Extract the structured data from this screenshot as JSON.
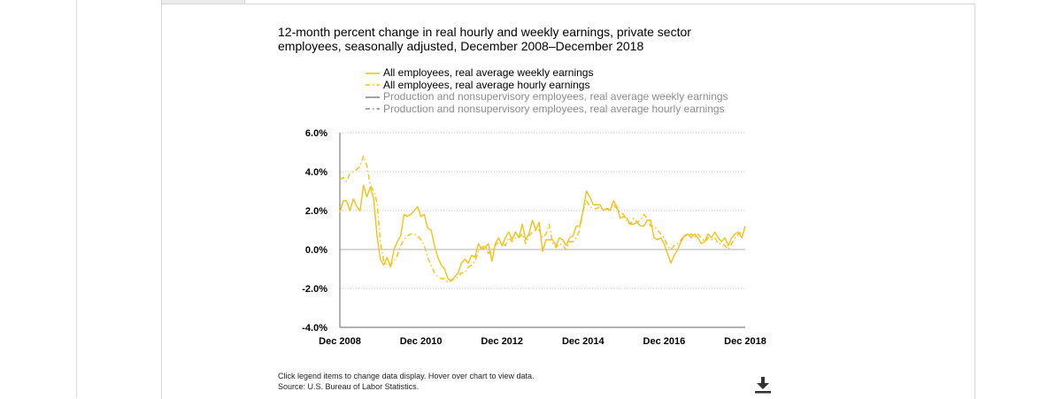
{
  "title_line1": "12-month percent change in real hourly and weekly earnings, private sector",
  "title_line2": "employees, seasonally adjusted, December 2008–December 2018",
  "footnote_line1": "Click legend items to change data display. Hover over chart to view data.",
  "footnote_line2": "Source: U.S. Bureau of Labor Statistics.",
  "download_icon": "download-icon",
  "colors": {
    "accent": "#f5c116",
    "gray": "#8c8c8c",
    "grid": "#c8c8c8",
    "zero": "#b3b3b3"
  },
  "chart_data": {
    "type": "line",
    "title": "12-month percent change in real hourly and weekly earnings, private sector employees, seasonally adjusted, December 2008–December 2018",
    "xlabel": "",
    "ylabel": "",
    "x_ticks": [
      "Dec 2008",
      "Dec 2010",
      "Dec 2012",
      "Dec 2014",
      "Dec 2016",
      "Dec 2018"
    ],
    "y_ticks": [
      "-4.0%",
      "-2.0%",
      "0.0%",
      "2.0%",
      "4.0%",
      "6.0%"
    ],
    "ylim": [
      -4,
      6
    ],
    "grid": "horizontal dotted",
    "legend_position": "top",
    "x_range": [
      "Dec 2008",
      "Dec 2018"
    ],
    "series": [
      {
        "name": "All employees, real average weekly earnings",
        "visible": true,
        "style": "solid",
        "color": "#f5c116",
        "points": [
          [
            "Dec 2008",
            1.9
          ],
          [
            "Jan 2009",
            2.5
          ],
          [
            "Feb 2009",
            2.5
          ],
          [
            "Mar 2009",
            2.0
          ],
          [
            "Apr 2009",
            2.6
          ],
          [
            "May 2009",
            2.2
          ],
          [
            "Jun 2009",
            2.0
          ],
          [
            "Jul 2009",
            3.3
          ],
          [
            "Aug 2009",
            2.7
          ],
          [
            "Sep 2009",
            3.2
          ],
          [
            "Oct 2009",
            2.6
          ],
          [
            "Nov 2009",
            0.7
          ],
          [
            "Dec 2009",
            -0.5
          ],
          [
            "Jan 2010",
            -0.8
          ],
          [
            "Feb 2010",
            -0.4
          ],
          [
            "Mar 2010",
            -0.9
          ],
          [
            "Apr 2010",
            0.0
          ],
          [
            "May 2010",
            0.4
          ],
          [
            "Jun 2010",
            0.7
          ],
          [
            "Jul 2010",
            1.8
          ],
          [
            "Aug 2010",
            1.7
          ],
          [
            "Sep 2010",
            1.8
          ],
          [
            "Oct 2010",
            2.0
          ],
          [
            "Nov 2010",
            2.2
          ],
          [
            "Dec 2010",
            1.7
          ],
          [
            "Jan 2011",
            1.8
          ],
          [
            "Feb 2011",
            1.1
          ],
          [
            "Mar 2011",
            1.0
          ],
          [
            "Apr 2011",
            0.2
          ],
          [
            "May 2011",
            -0.4
          ],
          [
            "Jun 2011",
            -0.8
          ],
          [
            "Jul 2011",
            -1.0
          ],
          [
            "Aug 2011",
            -1.5
          ],
          [
            "Sep 2011",
            -1.6
          ],
          [
            "Oct 2011",
            -1.4
          ],
          [
            "Nov 2011",
            -1.2
          ],
          [
            "Dec 2011",
            -0.7
          ],
          [
            "Jan 2012",
            -0.5
          ],
          [
            "Feb 2012",
            -0.7
          ],
          [
            "Mar 2012",
            -0.3
          ],
          [
            "Apr 2012",
            -0.4
          ],
          [
            "May 2012",
            0.3
          ],
          [
            "Jun 2012",
            0.0
          ],
          [
            "Jul 2012",
            0.1
          ],
          [
            "Aug 2012",
            0.3
          ],
          [
            "Sep 2012",
            -0.6
          ],
          [
            "Oct 2012",
            0.3
          ],
          [
            "Nov 2012",
            0.6
          ],
          [
            "Dec 2012",
            0.2
          ],
          [
            "Jan 2013",
            0.6
          ],
          [
            "Feb 2013",
            0.9
          ],
          [
            "Mar 2013",
            0.5
          ],
          [
            "Apr 2013",
            0.9
          ],
          [
            "May 2013",
            0.6
          ],
          [
            "Jun 2013",
            1.3
          ],
          [
            "Jul 2013",
            0.5
          ],
          [
            "Aug 2013",
            0.8
          ],
          [
            "Sep 2013",
            1.5
          ],
          [
            "Oct 2013",
            1.0
          ],
          [
            "Nov 2013",
            1.4
          ],
          [
            "Dec 2013",
            -0.1
          ],
          [
            "Jan 2014",
            0.5
          ],
          [
            "Feb 2014",
            0.5
          ],
          [
            "Mar 2014",
            0.5
          ],
          [
            "Apr 2014",
            0.2
          ],
          [
            "May 2014",
            0.6
          ],
          [
            "Jun 2014",
            0.5
          ],
          [
            "Jul 2014",
            0.2
          ],
          [
            "Aug 2014",
            0.6
          ],
          [
            "Sep 2014",
            0.7
          ],
          [
            "Oct 2014",
            1.2
          ],
          [
            "Nov 2014",
            1.2
          ],
          [
            "Dec 2014",
            2.0
          ],
          [
            "Jan 2015",
            3.0
          ],
          [
            "Feb 2015",
            2.7
          ],
          [
            "Mar 2015",
            2.3
          ],
          [
            "Apr 2015",
            2.3
          ],
          [
            "May 2015",
            2.3
          ],
          [
            "Jun 2015",
            2.0
          ],
          [
            "Jul 2015",
            2.1
          ],
          [
            "Aug 2015",
            2.0
          ],
          [
            "Sep 2015",
            2.5
          ],
          [
            "Oct 2015",
            2.2
          ],
          [
            "Nov 2015",
            1.6
          ],
          [
            "Dec 2015",
            1.7
          ],
          [
            "Jan 2016",
            1.6
          ],
          [
            "Feb 2016",
            1.3
          ],
          [
            "Mar 2016",
            1.3
          ],
          [
            "Apr 2016",
            1.4
          ],
          [
            "May 2016",
            1.2
          ],
          [
            "Jun 2016",
            1.2
          ],
          [
            "Jul 2016",
            1.5
          ],
          [
            "Aug 2016",
            1.5
          ],
          [
            "Sep 2016",
            0.6
          ],
          [
            "Oct 2016",
            0.5
          ],
          [
            "Nov 2016",
            0.6
          ],
          [
            "Dec 2016",
            0.3
          ],
          [
            "Jan 2017",
            -0.2
          ],
          [
            "Feb 2017",
            -0.7
          ],
          [
            "Mar 2017",
            -0.3
          ],
          [
            "Apr 2017",
            0.0
          ],
          [
            "May 2017",
            0.4
          ],
          [
            "Jun 2017",
            0.7
          ],
          [
            "Jul 2017",
            0.8
          ],
          [
            "Aug 2017",
            0.6
          ],
          [
            "Sep 2017",
            0.8
          ],
          [
            "Oct 2017",
            0.6
          ],
          [
            "Nov 2017",
            0.3
          ],
          [
            "Dec 2017",
            0.4
          ],
          [
            "Jan 2018",
            0.8
          ],
          [
            "Feb 2018",
            0.6
          ],
          [
            "Mar 2018",
            0.9
          ],
          [
            "Apr 2018",
            0.6
          ],
          [
            "May 2018",
            0.4
          ],
          [
            "Jun 2018",
            0.6
          ],
          [
            "Jul 2018",
            0.2
          ],
          [
            "Aug 2018",
            0.6
          ],
          [
            "Sep 2018",
            0.8
          ],
          [
            "Oct 2018",
            0.9
          ],
          [
            "Nov 2018",
            0.6
          ],
          [
            "Dec 2018",
            1.2
          ]
        ]
      },
      {
        "name": "All employees, real average hourly earnings",
        "visible": true,
        "style": "dash-dot",
        "color": "#f5c116",
        "points": [
          [
            "Dec 2008",
            3.6
          ],
          [
            "Jan 2009",
            3.7
          ],
          [
            "Feb 2009",
            3.5
          ],
          [
            "Mar 2009",
            3.9
          ],
          [
            "Apr 2009",
            4.0
          ],
          [
            "May 2009",
            4.1
          ],
          [
            "Jun 2009",
            4.3
          ],
          [
            "Jul 2009",
            4.8
          ],
          [
            "Aug 2009",
            4.3
          ],
          [
            "Sep 2009",
            3.3
          ],
          [
            "Oct 2009",
            3.0
          ],
          [
            "Nov 2009",
            2.4
          ],
          [
            "Dec 2009",
            0.4
          ],
          [
            "Jan 2010",
            -0.6
          ],
          [
            "Feb 2010",
            -0.8
          ],
          [
            "Mar 2010",
            -0.8
          ],
          [
            "Apr 2010",
            -0.6
          ],
          [
            "May 2010",
            -0.3
          ],
          [
            "Jun 2010",
            0.2
          ],
          [
            "Jul 2010",
            0.5
          ],
          [
            "Aug 2010",
            0.7
          ],
          [
            "Sep 2010",
            0.8
          ],
          [
            "Oct 2010",
            0.8
          ],
          [
            "Nov 2010",
            0.7
          ],
          [
            "Dec 2010",
            0.5
          ],
          [
            "Jan 2011",
            0.2
          ],
          [
            "Feb 2011",
            -0.4
          ],
          [
            "Mar 2011",
            -0.8
          ],
          [
            "Apr 2011",
            -1.2
          ],
          [
            "May 2011",
            -1.4
          ],
          [
            "Jun 2011",
            -1.5
          ],
          [
            "Jul 2011",
            -1.5
          ],
          [
            "Aug 2011",
            -1.7
          ],
          [
            "Sep 2011",
            -1.6
          ],
          [
            "Oct 2011",
            -1.5
          ],
          [
            "Nov 2011",
            -1.4
          ],
          [
            "Dec 2011",
            -1.2
          ],
          [
            "Jan 2012",
            -1.2
          ],
          [
            "Feb 2012",
            -0.9
          ],
          [
            "Mar 2012",
            -0.8
          ],
          [
            "Apr 2012",
            -0.6
          ],
          [
            "May 2012",
            -0.1
          ],
          [
            "Jun 2012",
            0.1
          ],
          [
            "Jul 2012",
            0.2
          ],
          [
            "Aug 2012",
            -0.2
          ],
          [
            "Sep 2012",
            -0.1
          ],
          [
            "Oct 2012",
            0.2
          ],
          [
            "Nov 2012",
            0.4
          ],
          [
            "Dec 2012",
            0.3
          ],
          [
            "Jan 2013",
            0.2
          ],
          [
            "Feb 2013",
            0.6
          ],
          [
            "Mar 2013",
            0.4
          ],
          [
            "Apr 2013",
            0.6
          ],
          [
            "May 2013",
            0.6
          ],
          [
            "Jun 2013",
            0.8
          ],
          [
            "Jul 2013",
            0.3
          ],
          [
            "Aug 2013",
            0.7
          ],
          [
            "Sep 2013",
            0.9
          ],
          [
            "Oct 2013",
            1.0
          ],
          [
            "Nov 2013",
            1.0
          ],
          [
            "Dec 2013",
            0.6
          ],
          [
            "Jan 2014",
            0.8
          ],
          [
            "Feb 2014",
            1.3
          ],
          [
            "Mar 2014",
            0.3
          ],
          [
            "Apr 2014",
            0.1
          ],
          [
            "May 2014",
            0.3
          ],
          [
            "Jun 2014",
            0.2
          ],
          [
            "Jul 2014",
            0.0
          ],
          [
            "Aug 2014",
            0.4
          ],
          [
            "Sep 2014",
            0.4
          ],
          [
            "Oct 2014",
            0.6
          ],
          [
            "Nov 2014",
            1.0
          ],
          [
            "Dec 2014",
            2.0
          ],
          [
            "Jan 2015",
            2.5
          ],
          [
            "Feb 2015",
            2.2
          ],
          [
            "Mar 2015",
            2.1
          ],
          [
            "Apr 2015",
            2.1
          ],
          [
            "May 2015",
            2.2
          ],
          [
            "Jun 2015",
            2.0
          ],
          [
            "Jul 2015",
            2.1
          ],
          [
            "Aug 2015",
            2.1
          ],
          [
            "Sep 2015",
            2.3
          ],
          [
            "Oct 2015",
            2.1
          ],
          [
            "Nov 2015",
            1.9
          ],
          [
            "Dec 2015",
            1.8
          ],
          [
            "Jan 2016",
            1.4
          ],
          [
            "Feb 2016",
            1.3
          ],
          [
            "Mar 2016",
            1.6
          ],
          [
            "Apr 2016",
            1.4
          ],
          [
            "May 2016",
            1.5
          ],
          [
            "Jun 2016",
            1.8
          ],
          [
            "Jul 2016",
            1.6
          ],
          [
            "Aug 2016",
            1.2
          ],
          [
            "Sep 2016",
            1.2
          ],
          [
            "Oct 2016",
            1.0
          ],
          [
            "Nov 2016",
            0.8
          ],
          [
            "Dec 2016",
            0.6
          ],
          [
            "Jan 2017",
            0.2
          ],
          [
            "Feb 2017",
            0.0
          ],
          [
            "Mar 2017",
            0.2
          ],
          [
            "Apr 2017",
            0.3
          ],
          [
            "May 2017",
            0.5
          ],
          [
            "Jun 2017",
            0.7
          ],
          [
            "Jul 2017",
            0.7
          ],
          [
            "Aug 2017",
            0.8
          ],
          [
            "Sep 2017",
            0.6
          ],
          [
            "Oct 2017",
            0.8
          ],
          [
            "Nov 2017",
            0.6
          ],
          [
            "Dec 2017",
            0.4
          ],
          [
            "Jan 2018",
            0.6
          ],
          [
            "Feb 2018",
            0.5
          ],
          [
            "Mar 2018",
            0.6
          ],
          [
            "Apr 2018",
            0.3
          ],
          [
            "May 2018",
            0.3
          ],
          [
            "Jun 2018",
            0.2
          ],
          [
            "Jul 2018",
            0.0
          ],
          [
            "Aug 2018",
            0.3
          ],
          [
            "Sep 2018",
            0.6
          ],
          [
            "Oct 2018",
            0.8
          ],
          [
            "Nov 2018",
            0.9
          ],
          [
            "Dec 2018",
            1.0
          ]
        ]
      },
      {
        "name": "Production and nonsupervisory employees, real average weekly earnings",
        "visible": false,
        "style": "solid",
        "color": "#8c8c8c",
        "points": []
      },
      {
        "name": "Production and nonsupervisory employees, real average hourly earnings",
        "visible": false,
        "style": "dash-dot",
        "color": "#8c8c8c",
        "points": []
      }
    ]
  }
}
